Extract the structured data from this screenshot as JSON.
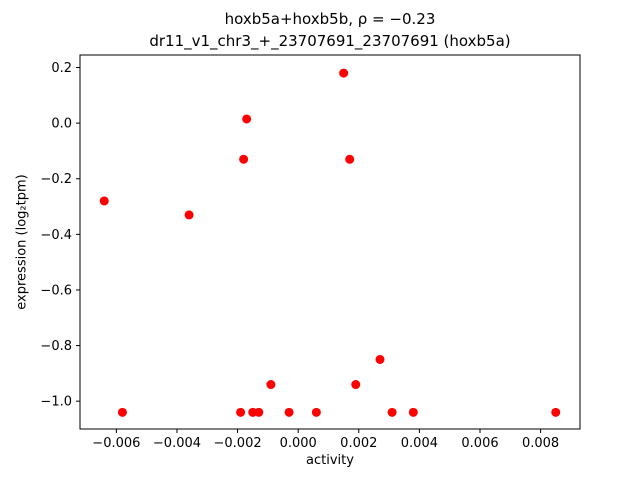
{
  "chart_data": {
    "type": "scatter",
    "title_line1": "hoxb5a+hoxb5b, ρ = −0.23",
    "title_line2": "dr11_v1_chr3_+_23707691_23707691 (hoxb5a)",
    "xlabel": "activity",
    "ylabel": "expression (log₂tpm)",
    "xlim": [
      -0.0072,
      0.0093
    ],
    "ylim": [
      -1.1,
      0.245
    ],
    "xticks": [
      -0.006,
      -0.004,
      -0.002,
      0.0,
      0.002,
      0.004,
      0.006,
      0.008
    ],
    "xtick_labels": [
      "−0.006",
      "−0.004",
      "−0.002",
      "0.000",
      "0.002",
      "0.004",
      "0.006",
      "0.008"
    ],
    "yticks": [
      0.2,
      0.0,
      -0.2,
      -0.4,
      -0.6,
      -0.8,
      -1.0
    ],
    "ytick_labels": [
      "0.2",
      "0.0",
      "−0.2",
      "−0.4",
      "−0.6",
      "−0.8",
      "−1.0"
    ],
    "marker_color": "#ff0000",
    "marker_radius": 4.5,
    "points": [
      {
        "x": -0.0064,
        "y": -0.28
      },
      {
        "x": -0.0058,
        "y": -1.04
      },
      {
        "x": -0.0036,
        "y": -0.33
      },
      {
        "x": -0.0017,
        "y": 0.015
      },
      {
        "x": -0.0018,
        "y": -0.13
      },
      {
        "x": -0.0019,
        "y": -1.04
      },
      {
        "x": -0.0015,
        "y": -1.04
      },
      {
        "x": -0.0013,
        "y": -1.04
      },
      {
        "x": -0.0009,
        "y": -0.94
      },
      {
        "x": -0.0003,
        "y": -1.04
      },
      {
        "x": 0.0006,
        "y": -1.04
      },
      {
        "x": 0.0015,
        "y": 0.18
      },
      {
        "x": 0.0017,
        "y": -0.13
      },
      {
        "x": 0.0019,
        "y": -0.94
      },
      {
        "x": 0.0027,
        "y": -0.85
      },
      {
        "x": 0.0031,
        "y": -1.04
      },
      {
        "x": 0.0038,
        "y": -1.04
      },
      {
        "x": 0.0085,
        "y": -1.04
      }
    ],
    "legend": null,
    "grid": false
  }
}
